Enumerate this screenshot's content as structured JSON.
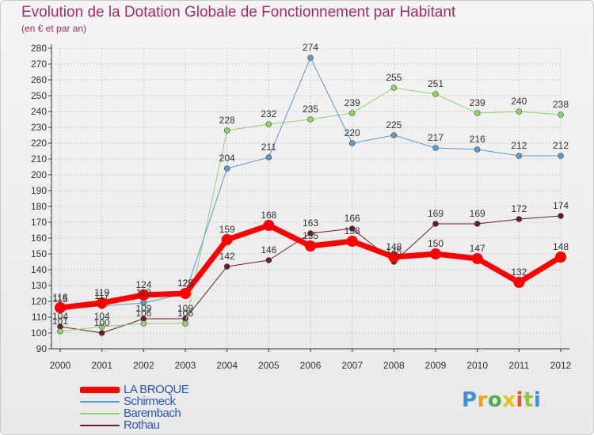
{
  "title": "Evolution de la Dotation Globale de Fonctionnement par Habitant",
  "subtitle": "(en € et par an)",
  "logo_text": "Proxiti",
  "colors": {
    "title": "#a82b66",
    "axis": "#333333",
    "grid": "#cccccc",
    "legend_text": "#2a55c0"
  },
  "chart_data": {
    "type": "line",
    "title": "Evolution de la Dotation Globale de Fonctionnement par Habitant",
    "subtitle": "(en € et par an)",
    "xlabel": "",
    "ylabel": "",
    "ylim": [
      90,
      280
    ],
    "yticks": [
      90,
      100,
      110,
      120,
      130,
      140,
      150,
      160,
      170,
      180,
      190,
      200,
      210,
      220,
      230,
      240,
      250,
      260,
      270,
      280
    ],
    "categories": [
      "2000",
      "2001",
      "2002",
      "2003",
      "2004",
      "2005",
      "2006",
      "2007",
      "2008",
      "2009",
      "2010",
      "2011",
      "2012"
    ],
    "grid": true,
    "legend_position": "bottom-left",
    "series": [
      {
        "name": "Rothau",
        "color": "#6b1d24",
        "width": 1,
        "marker": 3.5,
        "values": [
          104,
          100,
          109,
          109,
          142,
          146,
          163,
          166,
          145,
          169,
          169,
          172,
          174
        ],
        "labels": [
          "104",
          "100",
          "109",
          "109",
          "142",
          "146",
          "163",
          "166",
          "145",
          "169",
          "169",
          "172",
          "174"
        ]
      },
      {
        "name": "Barembach",
        "color": "#8fd468",
        "width": 1,
        "marker": 3.5,
        "values": [
          101,
          104,
          106,
          106,
          228,
          232,
          235,
          239,
          255,
          251,
          239,
          240,
          238
        ],
        "labels": [
          "101",
          "104",
          "106",
          "106",
          "228",
          "232",
          "235",
          "239",
          "255",
          "251",
          "239",
          "240",
          "238"
        ]
      },
      {
        "name": "Schirmeck",
        "color": "#5b9bd0",
        "width": 1,
        "marker": 3.5,
        "values": [
          115,
          117,
          119,
          125,
          204,
          211,
          274,
          220,
          225,
          217,
          216,
          212,
          212
        ],
        "labels": [
          "115",
          "117",
          "119",
          "125",
          "204",
          "211",
          "274",
          "220",
          "225",
          "217",
          "216",
          "212",
          "212"
        ]
      },
      {
        "name": "LA BROQUE",
        "color": "#ff0000",
        "width": 7,
        "marker": 7,
        "values": [
          116,
          119,
          124,
          125,
          159,
          168,
          155,
          158,
          148,
          150,
          147,
          132,
          148
        ],
        "labels": [
          "116",
          "119",
          "124",
          "125",
          "159",
          "168",
          "155",
          "158",
          "148",
          "150",
          "147",
          "132",
          "148"
        ]
      }
    ]
  },
  "legend": [
    {
      "name": "LA BROQUE",
      "color": "#ff0000",
      "thickness": 8
    },
    {
      "name": "Schirmeck",
      "color": "#5b9bd0",
      "thickness": 2
    },
    {
      "name": "Barembach",
      "color": "#8fd468",
      "thickness": 2
    },
    {
      "name": "Rothau",
      "color": "#6b1d24",
      "thickness": 2
    }
  ]
}
